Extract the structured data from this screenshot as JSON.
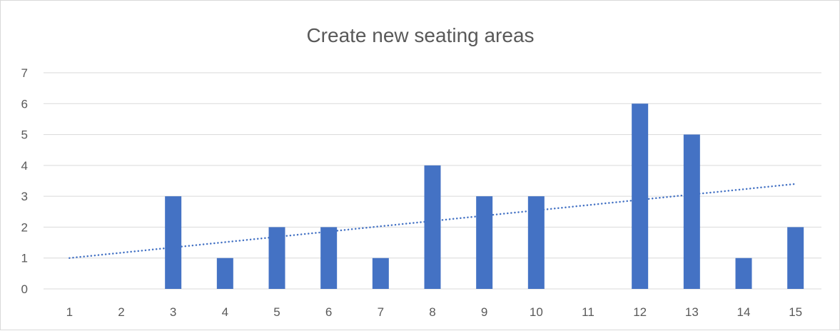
{
  "chart_data": {
    "type": "bar",
    "title": "Create new seating areas",
    "xlabel": "",
    "ylabel": "",
    "categories": [
      "1",
      "2",
      "3",
      "4",
      "5",
      "6",
      "7",
      "8",
      "9",
      "10",
      "11",
      "12",
      "13",
      "14",
      "15"
    ],
    "values": [
      0,
      0,
      3,
      1,
      2,
      2,
      1,
      4,
      3,
      3,
      0,
      6,
      5,
      1,
      2
    ],
    "ylim": [
      0,
      7
    ],
    "yticks": [
      "0",
      "1",
      "2",
      "3",
      "4",
      "5",
      "6",
      "7"
    ],
    "grid": true,
    "legend": "none",
    "trendline": {
      "type": "linear",
      "style": "dotted",
      "start": 1.0,
      "end": 3.4
    },
    "colors": {
      "bar": "#4472c4",
      "trendline": "#4472c4",
      "grid": "#d9d9d9",
      "text": "#595959"
    }
  }
}
